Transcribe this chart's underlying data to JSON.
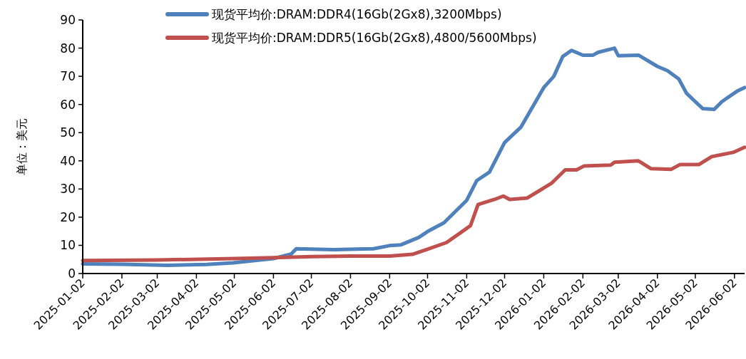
{
  "chart_data": {
    "type": "line",
    "ylabel": "单位：美元",
    "xlim": [
      "2025-01-02",
      "2026-06-10"
    ],
    "xticks": [
      "2025-01-02",
      "2025-02-02",
      "2025-03-02",
      "2025-04-02",
      "2025-05-02",
      "2025-06-02",
      "2025-07-02",
      "2025-08-02",
      "2025-09-02",
      "2025-10-02",
      "2025-11-02",
      "2025-12-02",
      "2026-01-02",
      "2026-02-02",
      "2026-03-02",
      "2026-04-02",
      "2026-05-02",
      "2026-06-02"
    ],
    "ylim": [
      0,
      90
    ],
    "yticks": [
      0,
      10,
      20,
      30,
      40,
      50,
      60,
      70,
      80,
      90
    ],
    "grid": false,
    "legend": "top",
    "marker": "none",
    "line_style": "solid",
    "series": [
      {
        "name": "现货平均价:DRAM:DDR4(16Gb(2Gx8),3200Mbps)",
        "color": "#4f81bd",
        "x": [
          "2025-01-02",
          "2025-02-02",
          "2025-03-10",
          "2025-04-10",
          "2025-05-01",
          "2025-06-02",
          "2025-06-16",
          "2025-06-20",
          "2025-07-20",
          "2025-08-20",
          "2025-09-02",
          "2025-09-11",
          "2025-09-25",
          "2025-10-02",
          "2025-10-15",
          "2025-11-02",
          "2025-11-10",
          "2025-11-20",
          "2025-12-02",
          "2025-12-15",
          "2026-01-02",
          "2026-01-10",
          "2026-01-17",
          "2026-01-24",
          "2026-02-02",
          "2026-02-10",
          "2026-02-14",
          "2026-02-27",
          "2026-03-02",
          "2026-03-18",
          "2026-04-02",
          "2026-04-10",
          "2026-04-19",
          "2026-04-25",
          "2026-05-02",
          "2026-05-08",
          "2026-05-17",
          "2026-05-23",
          "2026-06-04",
          "2026-06-10"
        ],
        "values": [
          3.4,
          3.3,
          2.9,
          3.2,
          3.8,
          5.3,
          6.9,
          8.8,
          8.5,
          8.8,
          9.9,
          10.2,
          12.8,
          14.9,
          18,
          26,
          33,
          36,
          46.5,
          52,
          66,
          70,
          77,
          79.2,
          77.5,
          77.5,
          78.5,
          80,
          77.3,
          77.5,
          73.5,
          72,
          69,
          64,
          61,
          58.5,
          58.3,
          61,
          64.7,
          66
        ]
      },
      {
        "name": "现货平均价:DRAM:DDR5(16Gb(2Gx8),4800/5600Mbps)",
        "color": "#c0504d",
        "x": [
          "2025-01-02",
          "2025-03-02",
          "2025-05-02",
          "2025-06-02",
          "2025-07-02",
          "2025-08-02",
          "2025-09-02",
          "2025-09-20",
          "2025-10-02",
          "2025-10-17",
          "2025-11-01",
          "2025-11-05",
          "2025-11-11",
          "2025-11-24",
          "2025-12-01",
          "2025-12-06",
          "2025-12-20",
          "2026-01-08",
          "2026-01-19",
          "2026-01-28",
          "2026-02-03",
          "2026-02-24",
          "2026-02-27",
          "2026-03-18",
          "2026-03-28",
          "2026-04-13",
          "2026-04-20",
          "2026-05-05",
          "2026-05-15",
          "2026-06-01",
          "2026-06-10"
        ],
        "values": [
          4.6,
          4.8,
          5.3,
          5.6,
          6.0,
          6.2,
          6.2,
          6.8,
          8.6,
          11,
          15.7,
          17,
          24.5,
          26.3,
          27.5,
          26.3,
          26.8,
          32,
          36.8,
          36.8,
          38.2,
          38.5,
          39.5,
          40,
          37.2,
          37,
          38.7,
          38.7,
          41.5,
          43,
          44.8
        ]
      }
    ]
  }
}
